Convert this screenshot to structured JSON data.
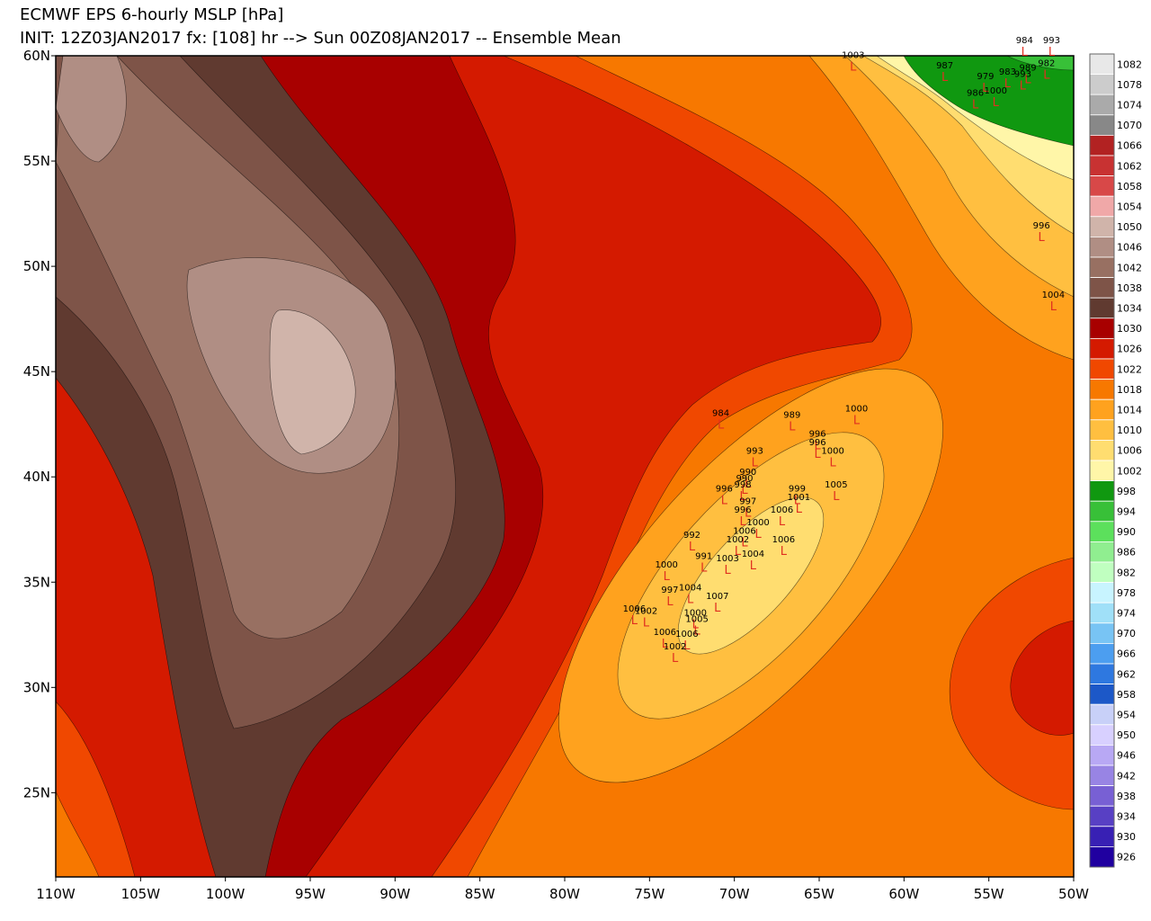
{
  "map": {
    "type": "contour-map",
    "title": "ECMWF EPS 6-hourly MSLP [hPa]",
    "subtitle": "INIT: 12Z03JAN2017 fx: [108] hr --> Sun 00Z08JAN2017 -- Ensemble Mean",
    "xlim": [
      -110,
      -50
    ],
    "ylim": [
      21,
      60
    ],
    "xticks": [
      {
        "value": -110,
        "label": "110W"
      },
      {
        "value": -105,
        "label": "105W"
      },
      {
        "value": -100,
        "label": "100W"
      },
      {
        "value": -95,
        "label": "95W"
      },
      {
        "value": -90,
        "label": "90W"
      },
      {
        "value": -85,
        "label": "85W"
      },
      {
        "value": -80,
        "label": "80W"
      },
      {
        "value": -75,
        "label": "75W"
      },
      {
        "value": -70,
        "label": "70W"
      },
      {
        "value": -65,
        "label": "65W"
      },
      {
        "value": -60,
        "label": "60W"
      },
      {
        "value": -55,
        "label": "55W"
      },
      {
        "value": -50,
        "label": "50W"
      }
    ],
    "yticks": [
      {
        "value": 60,
        "label": "60N"
      },
      {
        "value": 55,
        "label": "55N"
      },
      {
        "value": 50,
        "label": "50N"
      },
      {
        "value": 45,
        "label": "45N"
      },
      {
        "value": 40,
        "label": "40N"
      },
      {
        "value": 35,
        "label": "35N"
      },
      {
        "value": 30,
        "label": "30N"
      },
      {
        "value": 25,
        "label": "25N"
      }
    ],
    "colorbar": {
      "levels": [
        1082,
        1078,
        1074,
        1070,
        1066,
        1062,
        1058,
        1054,
        1050,
        1046,
        1042,
        1038,
        1034,
        1030,
        1026,
        1022,
        1018,
        1014,
        1010,
        1006,
        1002,
        998,
        994,
        990,
        986,
        982,
        978,
        974,
        970,
        966,
        962,
        958,
        954,
        950,
        946,
        942,
        938,
        934,
        930,
        926
      ],
      "colors": [
        "#e8e8e8",
        "#cccccc",
        "#aaaaaa",
        "#888888",
        "#b22222",
        "#c83232",
        "#d84848",
        "#f0a8a8",
        "#d0b4aa",
        "#b08e84",
        "#987062",
        "#7e5448",
        "#603a30",
        "#a80000",
        "#d41a00",
        "#f04800",
        "#f77800",
        "#ffa21e",
        "#ffbf40",
        "#ffdd70",
        "#fff6a8",
        "#109810",
        "#38c038",
        "#5ce05c",
        "#90ee90",
        "#c0ffc0",
        "#c8f4ff",
        "#a0e0f8",
        "#78c4f4",
        "#4c9ef0",
        "#2e78e0",
        "#1c58c8",
        "#c8d0f8",
        "#d8d0ff",
        "#b8a8f4",
        "#9884e4",
        "#7860d4",
        "#5840c4",
        "#3820b4",
        "#2000a0"
      ]
    },
    "low_symbol": "L",
    "low_color": "#e03020",
    "lows": [
      {
        "value": 984,
        "lon": -52.9,
        "lat": 60.6
      },
      {
        "value": 993,
        "lon": -51.3,
        "lat": 60.6
      },
      {
        "value": 1003,
        "lon": -63.0,
        "lat": 59.9
      },
      {
        "value": 987,
        "lon": -57.6,
        "lat": 59.4
      },
      {
        "value": 979,
        "lon": -55.2,
        "lat": 58.9
      },
      {
        "value": 983,
        "lon": -53.9,
        "lat": 59.1
      },
      {
        "value": 989,
        "lon": -52.7,
        "lat": 59.3
      },
      {
        "value": 993,
        "lon": -53.0,
        "lat": 59.0
      },
      {
        "value": 982,
        "lon": -51.6,
        "lat": 59.5
      },
      {
        "value": 986,
        "lon": -55.8,
        "lat": 58.1
      },
      {
        "value": 1000,
        "lon": -54.6,
        "lat": 58.2
      },
      {
        "value": 996,
        "lon": -51.9,
        "lat": 51.8
      },
      {
        "value": 1004,
        "lon": -51.2,
        "lat": 48.5
      },
      {
        "value": 989,
        "lon": -66.6,
        "lat": 42.8
      },
      {
        "value": 1000,
        "lon": -62.8,
        "lat": 43.1
      },
      {
        "value": 996,
        "lon": -65.1,
        "lat": 41.9
      },
      {
        "value": 996,
        "lon": -65.1,
        "lat": 41.5
      },
      {
        "value": 1000,
        "lon": -64.2,
        "lat": 41.1
      },
      {
        "value": 993,
        "lon": -68.8,
        "lat": 41.1
      },
      {
        "value": 984,
        "lon": -70.8,
        "lat": 42.9
      },
      {
        "value": 990,
        "lon": -69.2,
        "lat": 40.1
      },
      {
        "value": 990,
        "lon": -69.4,
        "lat": 39.8
      },
      {
        "value": 998,
        "lon": -69.5,
        "lat": 39.5
      },
      {
        "value": 996,
        "lon": -70.6,
        "lat": 39.3
      },
      {
        "value": 999,
        "lon": -66.3,
        "lat": 39.3
      },
      {
        "value": 1001,
        "lon": -66.2,
        "lat": 38.9
      },
      {
        "value": 1005,
        "lon": -64.0,
        "lat": 39.5
      },
      {
        "value": 997,
        "lon": -69.2,
        "lat": 38.7
      },
      {
        "value": 996,
        "lon": -69.5,
        "lat": 38.3
      },
      {
        "value": 1006,
        "lon": -67.2,
        "lat": 38.3
      },
      {
        "value": 1000,
        "lon": -68.6,
        "lat": 37.7
      },
      {
        "value": 1006,
        "lon": -69.4,
        "lat": 37.3
      },
      {
        "value": 992,
        "lon": -72.5,
        "lat": 37.1
      },
      {
        "value": 1002,
        "lon": -69.8,
        "lat": 36.9
      },
      {
        "value": 1006,
        "lon": -67.1,
        "lat": 36.9
      },
      {
        "value": 991,
        "lon": -71.8,
        "lat": 36.1
      },
      {
        "value": 1003,
        "lon": -70.4,
        "lat": 36.0
      },
      {
        "value": 1004,
        "lon": -68.9,
        "lat": 36.2
      },
      {
        "value": 1000,
        "lon": -74.0,
        "lat": 35.7
      },
      {
        "value": 1004,
        "lon": -72.6,
        "lat": 34.6
      },
      {
        "value": 997,
        "lon": -73.8,
        "lat": 34.5
      },
      {
        "value": 1007,
        "lon": -71.0,
        "lat": 34.2
      },
      {
        "value": 1000,
        "lon": -72.3,
        "lat": 33.4
      },
      {
        "value": 1006,
        "lon": -75.9,
        "lat": 33.6
      },
      {
        "value": 1002,
        "lon": -75.2,
        "lat": 33.5
      },
      {
        "value": 1005,
        "lon": -72.2,
        "lat": 33.1
      },
      {
        "value": 1006,
        "lon": -74.1,
        "lat": 32.5
      },
      {
        "value": 1006,
        "lon": -72.8,
        "lat": 32.4
      },
      {
        "value": 1002,
        "lon": -73.5,
        "lat": 31.8
      }
    ]
  }
}
